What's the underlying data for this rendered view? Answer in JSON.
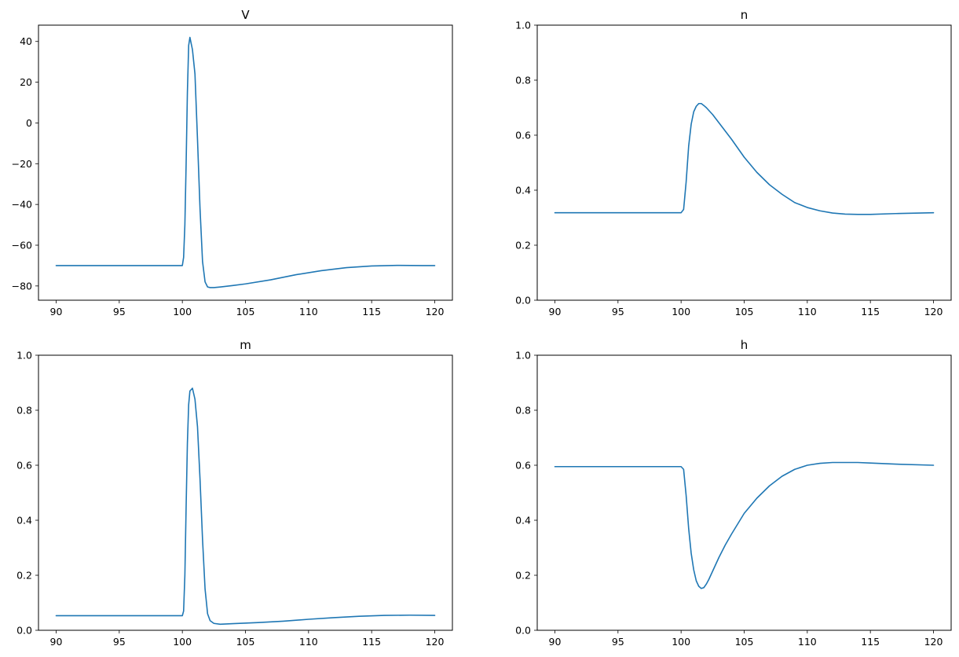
{
  "chart_data": [
    {
      "type": "line",
      "title": "V",
      "xlim": [
        88.6,
        121.4
      ],
      "ylim": [
        -87,
        48
      ],
      "xticks": [
        90,
        95,
        100,
        105,
        110,
        115,
        120
      ],
      "yticks": [
        -80,
        -60,
        -40,
        -20,
        0,
        20,
        40
      ],
      "ytick_labels": [
        "−80",
        "−60",
        "−40",
        "−20",
        "0",
        "20",
        "40"
      ],
      "grid": false,
      "color": "#1f77b4",
      "x": [
        90,
        100,
        100.1,
        100.2,
        100.3,
        100.4,
        100.5,
        100.6,
        100.8,
        101.0,
        101.2,
        101.4,
        101.6,
        101.8,
        102.0,
        102.2,
        102.5,
        103.0,
        104.0,
        105.0,
        107.0,
        109.0,
        111.0,
        113.0,
        115.0,
        117.0,
        119.0,
        120.0
      ],
      "y": [
        -70,
        -70,
        -66,
        -50,
        -20,
        15,
        38,
        42,
        36,
        24,
        -8,
        -42,
        -68,
        -78,
        -80.5,
        -80.8,
        -80.8,
        -80.5,
        -79.8,
        -79,
        -77,
        -74.5,
        -72.5,
        -71,
        -70.2,
        -69.9,
        -70,
        -70
      ]
    },
    {
      "type": "line",
      "title": "n",
      "xlim": [
        88.6,
        121.4
      ],
      "ylim": [
        0,
        1
      ],
      "xticks": [
        90,
        95,
        100,
        105,
        110,
        115,
        120
      ],
      "yticks": [
        0.0,
        0.2,
        0.4,
        0.6,
        0.8,
        1.0
      ],
      "ytick_labels": [
        "0.0",
        "0.2",
        "0.4",
        "0.6",
        "0.8",
        "1.0"
      ],
      "grid": false,
      "color": "#1f77b4",
      "x": [
        90,
        100,
        100.2,
        100.4,
        100.6,
        100.8,
        101.0,
        101.2,
        101.4,
        101.6,
        101.8,
        102.0,
        102.5,
        103.0,
        104.0,
        105.0,
        106.0,
        107.0,
        108.0,
        109.0,
        110.0,
        111.0,
        112.0,
        113.0,
        114.0,
        115.0,
        117.0,
        120.0
      ],
      "y": [
        0.318,
        0.318,
        0.33,
        0.43,
        0.56,
        0.64,
        0.685,
        0.705,
        0.715,
        0.715,
        0.708,
        0.7,
        0.675,
        0.645,
        0.585,
        0.52,
        0.465,
        0.42,
        0.385,
        0.355,
        0.337,
        0.325,
        0.317,
        0.313,
        0.312,
        0.312,
        0.315,
        0.318
      ]
    },
    {
      "type": "line",
      "title": "m",
      "xlim": [
        88.6,
        121.4
      ],
      "ylim": [
        0,
        1
      ],
      "xticks": [
        90,
        95,
        100,
        105,
        110,
        115,
        120
      ],
      "yticks": [
        0.0,
        0.2,
        0.4,
        0.6,
        0.8,
        1.0
      ],
      "ytick_labels": [
        "0.0",
        "0.2",
        "0.4",
        "0.6",
        "0.8",
        "1.0"
      ],
      "grid": false,
      "color": "#1f77b4",
      "x": [
        90,
        100,
        100.1,
        100.2,
        100.3,
        100.4,
        100.5,
        100.6,
        100.8,
        101.0,
        101.2,
        101.4,
        101.6,
        101.8,
        102.0,
        102.2,
        102.5,
        103.0,
        104.0,
        106.0,
        108.0,
        110.0,
        112.0,
        114.0,
        116.0,
        118.0,
        120.0
      ],
      "y": [
        0.053,
        0.053,
        0.07,
        0.2,
        0.45,
        0.68,
        0.82,
        0.87,
        0.88,
        0.84,
        0.74,
        0.55,
        0.33,
        0.15,
        0.06,
        0.035,
        0.025,
        0.022,
        0.024,
        0.028,
        0.033,
        0.04,
        0.046,
        0.051,
        0.054,
        0.055,
        0.054
      ]
    },
    {
      "type": "line",
      "title": "h",
      "xlim": [
        88.6,
        121.4
      ],
      "ylim": [
        0,
        1
      ],
      "xticks": [
        90,
        95,
        100,
        105,
        110,
        115,
        120
      ],
      "yticks": [
        0.0,
        0.2,
        0.4,
        0.6,
        0.8,
        1.0
      ],
      "ytick_labels": [
        "0.0",
        "0.2",
        "0.4",
        "0.6",
        "0.8",
        "1.0"
      ],
      "grid": false,
      "color": "#1f77b4",
      "x": [
        90,
        100,
        100.2,
        100.4,
        100.6,
        100.8,
        101.0,
        101.2,
        101.4,
        101.6,
        101.8,
        102.0,
        102.2,
        102.5,
        103.0,
        103.5,
        104.0,
        105.0,
        106.0,
        107.0,
        108.0,
        109.0,
        110.0,
        111.0,
        112.0,
        113.0,
        114.0,
        115.0,
        117.0,
        120.0
      ],
      "y": [
        0.595,
        0.595,
        0.585,
        0.49,
        0.37,
        0.28,
        0.22,
        0.18,
        0.16,
        0.152,
        0.155,
        0.168,
        0.185,
        0.215,
        0.265,
        0.31,
        0.35,
        0.425,
        0.48,
        0.525,
        0.56,
        0.585,
        0.6,
        0.607,
        0.61,
        0.61,
        0.61,
        0.608,
        0.604,
        0.6
      ]
    }
  ]
}
